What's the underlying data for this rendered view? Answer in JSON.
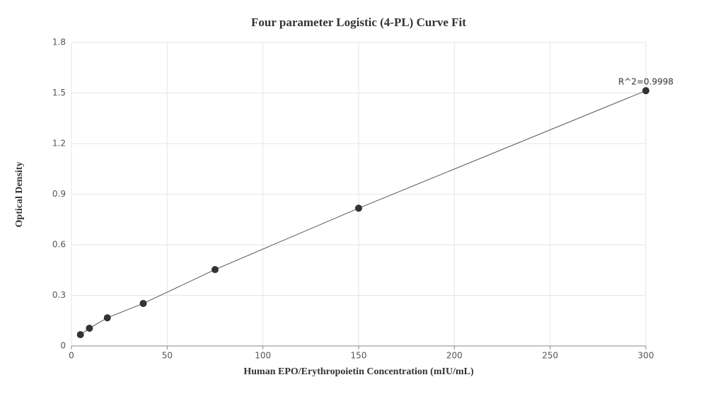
{
  "chart_data": {
    "type": "scatter",
    "title": "Four parameter Logistic (4-PL) Curve Fit",
    "x_label": "Human EPO/Erythropoietin Concentration (mIU/mL)",
    "y_label": "Optical Density",
    "annotation": "R^2=0.9998",
    "x": [
      4.69,
      9.38,
      18.75,
      37.5,
      75,
      150,
      300
    ],
    "values": [
      0.067,
      0.105,
      0.167,
      0.252,
      0.453,
      0.817,
      1.514
    ],
    "color": "#333333",
    "line_color": "#555555",
    "xlim": [
      0,
      300
    ],
    "xticks": [
      0,
      50,
      100,
      150,
      200,
      250,
      300
    ],
    "ylim": [
      0,
      1.8
    ],
    "yticks": [
      0,
      0.3,
      0.6,
      0.9,
      1.2,
      1.5,
      1.8
    ],
    "grid": true
  }
}
